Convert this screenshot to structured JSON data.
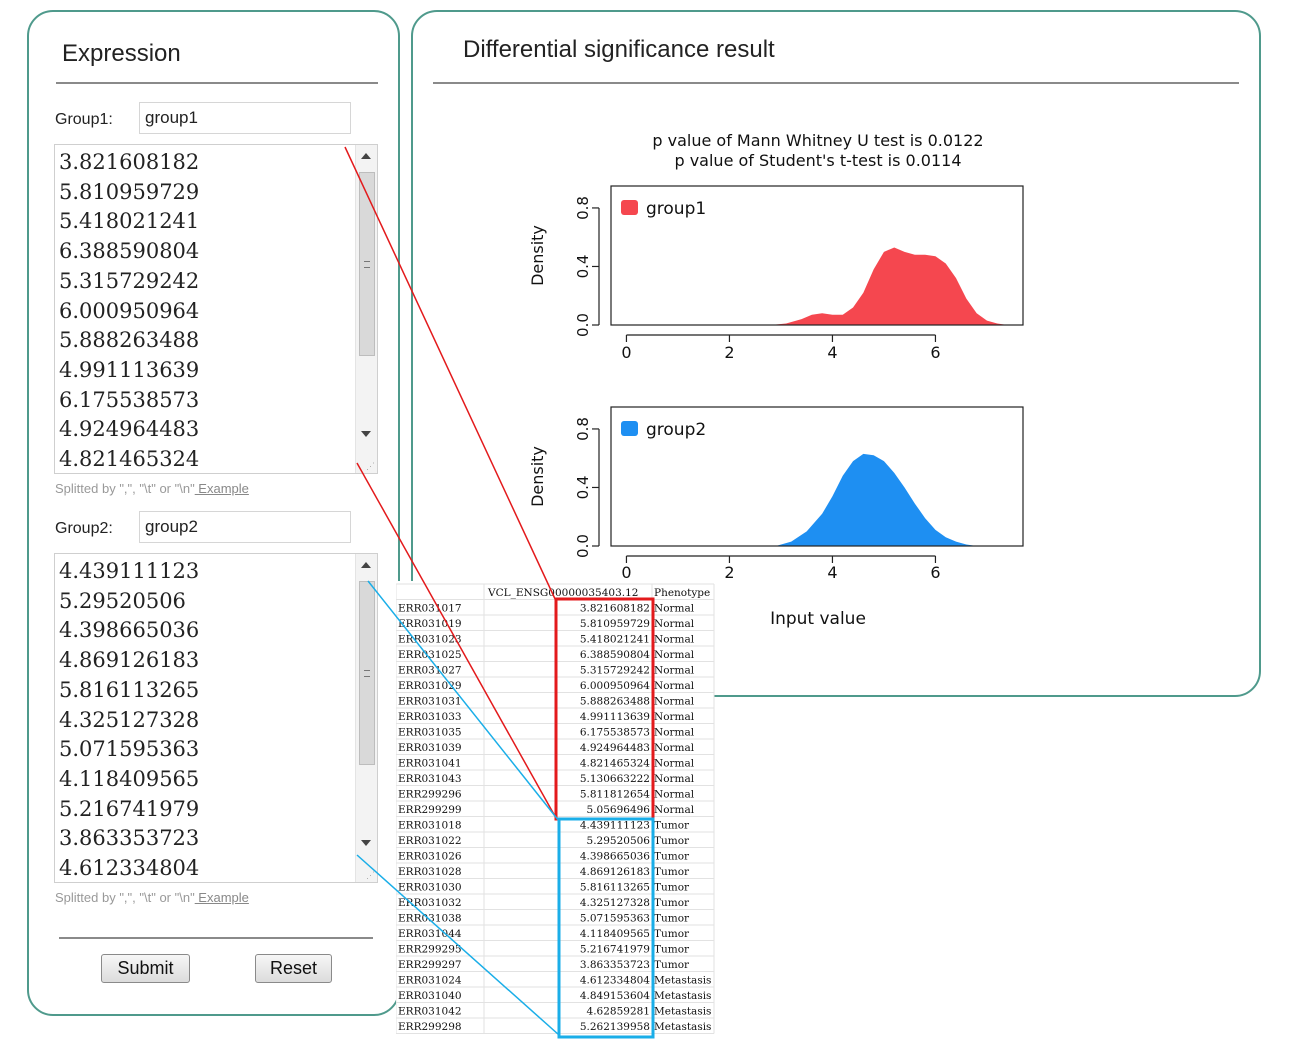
{
  "left_panel": {
    "title": "Expression",
    "group1": {
      "label": "Group1:",
      "name_value": "group1",
      "values": [
        "3.821608182",
        "5.810959729",
        "5.418021241",
        "6.388590804",
        "5.315729242",
        "6.000950964",
        "5.888263488",
        "4.991113639",
        "6.175538573",
        "4.924964483",
        "4.821465324"
      ]
    },
    "group2": {
      "label": "Group2:",
      "name_value": "group2",
      "values": [
        "4.439111123",
        "5.29520506",
        "4.398665036",
        "4.869126183",
        "5.816113265",
        "4.325127328",
        "5.071595363",
        "4.118409565",
        "5.216741979",
        "3.863353723",
        "4.612334804"
      ]
    },
    "hint_text": "Splitted by \",\", \"\\t\" or \"\\n\"",
    "example_link": " Example",
    "submit_label": "Submit",
    "reset_label": "Reset"
  },
  "right_panel": {
    "title": "Differential significance result"
  },
  "chart_data": [
    {
      "type": "area",
      "title": "p value of Mann Whitney U test is  0.0122",
      "subtitle": "p value of Student's t-test is  0.0114",
      "xlabel": "",
      "ylabel": "Density",
      "xlim": [
        -0.3,
        7.7
      ],
      "ylim": [
        0,
        0.95
      ],
      "xticks": [
        0,
        2,
        4,
        6
      ],
      "yticks": [
        "0.0",
        "0.4",
        "0.8"
      ],
      "legend": "top-left",
      "series": [
        {
          "name": "group1",
          "color": "#f5474f",
          "x": [
            2.8,
            3.1,
            3.4,
            3.6,
            3.8,
            4.0,
            4.2,
            4.4,
            4.6,
            4.8,
            5.0,
            5.2,
            5.4,
            5.6,
            5.8,
            6.0,
            6.2,
            6.4,
            6.6,
            6.8,
            7.0,
            7.2,
            7.4
          ],
          "y": [
            0.0,
            0.01,
            0.04,
            0.07,
            0.08,
            0.07,
            0.07,
            0.12,
            0.22,
            0.38,
            0.5,
            0.53,
            0.5,
            0.48,
            0.48,
            0.47,
            0.42,
            0.32,
            0.18,
            0.08,
            0.03,
            0.01,
            0.0
          ]
        }
      ]
    },
    {
      "type": "area",
      "xlabel": "Input value",
      "ylabel": "Density",
      "xlim": [
        -0.3,
        7.7
      ],
      "ylim": [
        0,
        0.95
      ],
      "xticks": [
        0,
        2,
        4,
        6
      ],
      "yticks": [
        "0.0",
        "0.4",
        "0.8"
      ],
      "legend": "top-left",
      "series": [
        {
          "name": "group2",
          "color": "#1e8ff2",
          "x": [
            2.9,
            3.2,
            3.5,
            3.8,
            4.0,
            4.2,
            4.4,
            4.6,
            4.8,
            5.0,
            5.2,
            5.4,
            5.6,
            5.8,
            6.0,
            6.2,
            6.4,
            6.6,
            6.8
          ],
          "y": [
            0.0,
            0.03,
            0.1,
            0.22,
            0.34,
            0.48,
            0.58,
            0.63,
            0.62,
            0.58,
            0.5,
            0.4,
            0.29,
            0.19,
            0.11,
            0.06,
            0.03,
            0.01,
            0.0
          ]
        }
      ]
    }
  ],
  "spreadsheet": {
    "header": [
      "",
      "VCL_ENSG00000035403.12",
      "Phenotype"
    ],
    "rows": [
      [
        "ERR031017",
        "3.821608182",
        "Normal"
      ],
      [
        "ERR031019",
        "5.810959729",
        "Normal"
      ],
      [
        "ERR031023",
        "5.418021241",
        "Normal"
      ],
      [
        "ERR031025",
        "6.388590804",
        "Normal"
      ],
      [
        "ERR031027",
        "5.315729242",
        "Normal"
      ],
      [
        "ERR031029",
        "6.000950964",
        "Normal"
      ],
      [
        "ERR031031",
        "5.888263488",
        "Normal"
      ],
      [
        "ERR031033",
        "4.991113639",
        "Normal"
      ],
      [
        "ERR031035",
        "6.175538573",
        "Normal"
      ],
      [
        "ERR031039",
        "4.924964483",
        "Normal"
      ],
      [
        "ERR031041",
        "4.821465324",
        "Normal"
      ],
      [
        "ERR031043",
        "5.130663222",
        "Normal"
      ],
      [
        "ERR299296",
        "5.811812654",
        "Normal"
      ],
      [
        "ERR299299",
        "5.05696496",
        "Normal"
      ],
      [
        "ERR031018",
        "4.439111123",
        "Tumor"
      ],
      [
        "ERR031022",
        "5.29520506",
        "Tumor"
      ],
      [
        "ERR031026",
        "4.398665036",
        "Tumor"
      ],
      [
        "ERR031028",
        "4.869126183",
        "Tumor"
      ],
      [
        "ERR031030",
        "5.816113265",
        "Tumor"
      ],
      [
        "ERR031032",
        "4.325127328",
        "Tumor"
      ],
      [
        "ERR031038",
        "5.071595363",
        "Tumor"
      ],
      [
        "ERR031044",
        "4.118409565",
        "Tumor"
      ],
      [
        "ERR299295",
        "5.216741979",
        "Tumor"
      ],
      [
        "ERR299297",
        "3.863353723",
        "Tumor"
      ],
      [
        "ERR031024",
        "4.612334804",
        "Metastasis"
      ],
      [
        "ERR031040",
        "4.849153604",
        "Metastasis"
      ],
      [
        "ERR031042",
        "4.62859281",
        "Metastasis"
      ],
      [
        "ERR299298",
        "5.262139958",
        "Metastasis"
      ]
    ],
    "highlight_colors": {
      "group1": "#e31a1c",
      "group2": "#1aaee8"
    }
  }
}
